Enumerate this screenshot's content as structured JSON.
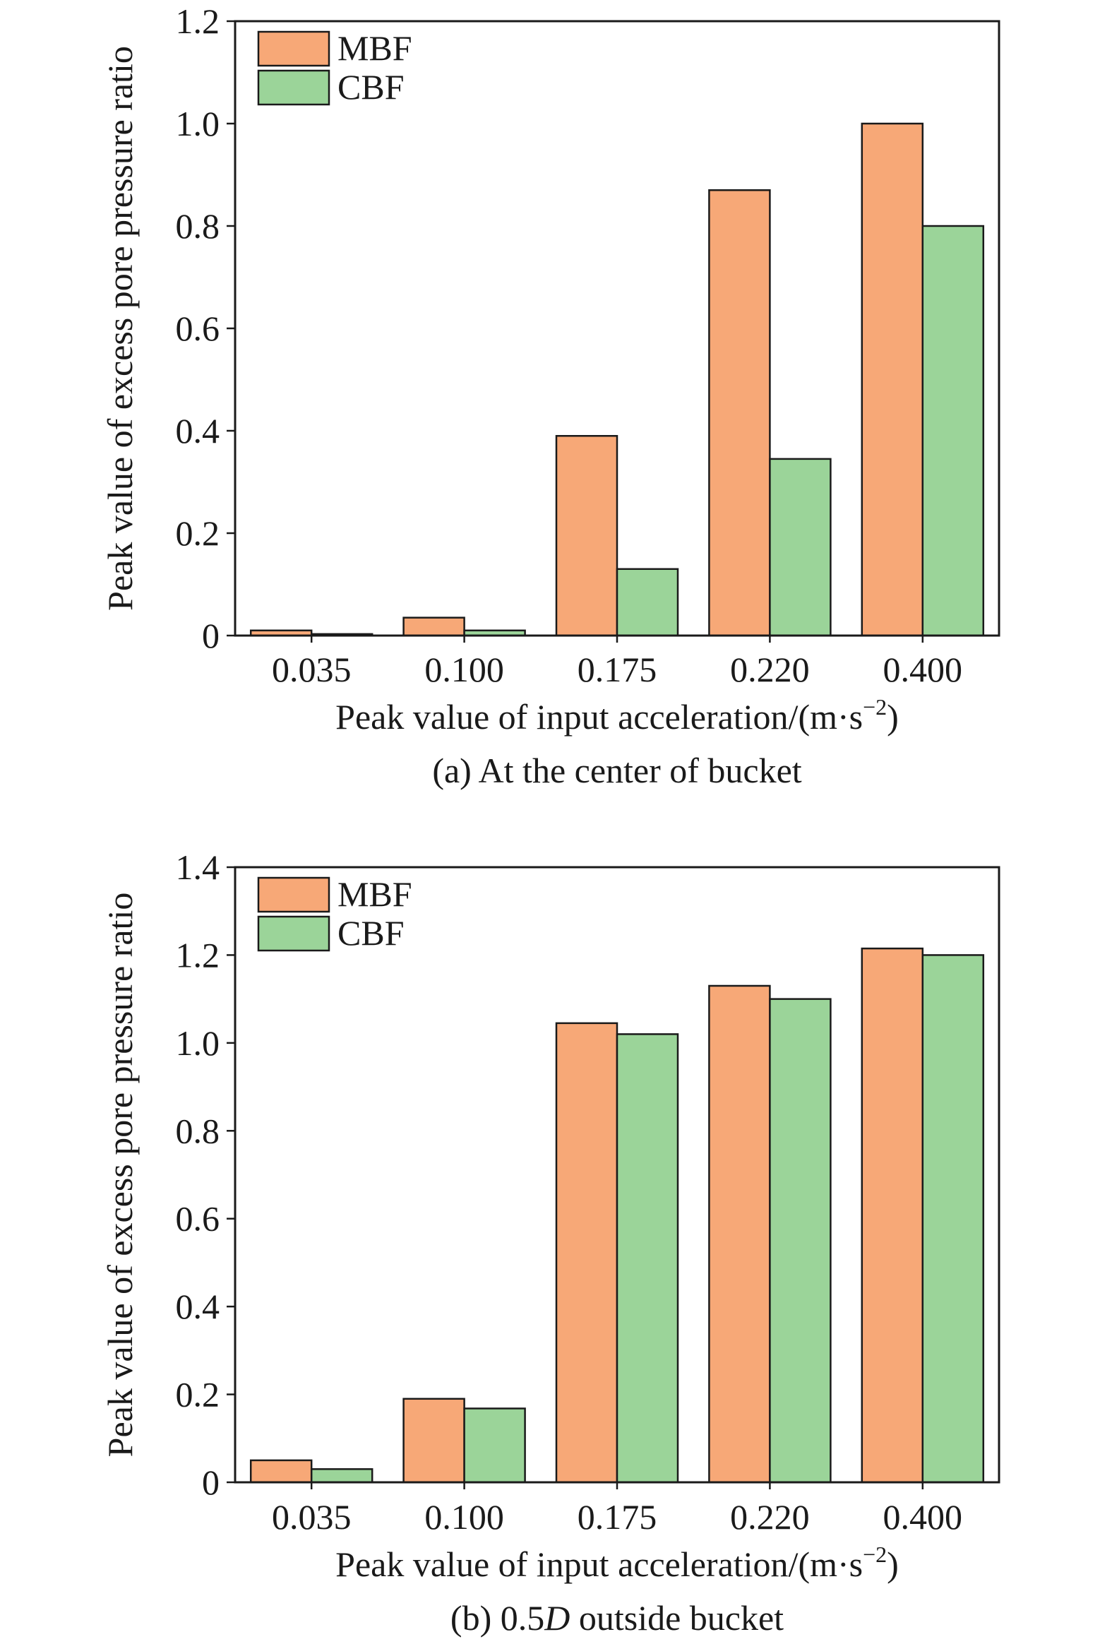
{
  "colors": {
    "MBF": "#f7a877",
    "CBF": "#9bd499",
    "axis": "#1a1a1a"
  },
  "chart_data": [
    {
      "type": "bar",
      "caption": "(a) At the center of bucket",
      "categories": [
        "0.035",
        "0.100",
        "0.175",
        "0.220",
        "0.400"
      ],
      "series": [
        {
          "name": "MBF",
          "values": [
            0.01,
            0.035,
            0.39,
            0.87,
            1.0
          ]
        },
        {
          "name": "CBF",
          "values": [
            0.003,
            0.01,
            0.13,
            0.345,
            0.8
          ]
        }
      ],
      "xlabel": "Peak value of input acceleration/(m·s",
      "xlabel_sup": "−2",
      "xlabel_tail": ")",
      "ylabel": "Peak value of excess pore pressure ratio",
      "ylim": [
        0,
        1.2
      ],
      "yticks": [
        "0",
        "0.2",
        "0.4",
        "0.6",
        "0.8",
        "1.0",
        "1.2"
      ],
      "legend": "top-left",
      "grid": false
    },
    {
      "type": "bar",
      "caption": "(b) 0.5D outside bucket",
      "caption_parts": [
        "(b) 0.5",
        "D",
        " outside bucket"
      ],
      "categories": [
        "0.035",
        "0.100",
        "0.175",
        "0.220",
        "0.400"
      ],
      "series": [
        {
          "name": "MBF",
          "values": [
            0.05,
            0.19,
            1.045,
            1.13,
            1.215
          ]
        },
        {
          "name": "CBF",
          "values": [
            0.03,
            0.168,
            1.02,
            1.1,
            1.2
          ]
        }
      ],
      "xlabel": "Peak value of input acceleration/(m·s",
      "xlabel_sup": "−2",
      "xlabel_tail": ")",
      "ylabel": "Peak value of excess pore pressure ratio",
      "ylim": [
        0,
        1.4
      ],
      "yticks": [
        "0",
        "0.2",
        "0.4",
        "0.6",
        "0.8",
        "1.0",
        "1.2",
        "1.4"
      ],
      "legend": "top-left",
      "grid": false
    }
  ]
}
